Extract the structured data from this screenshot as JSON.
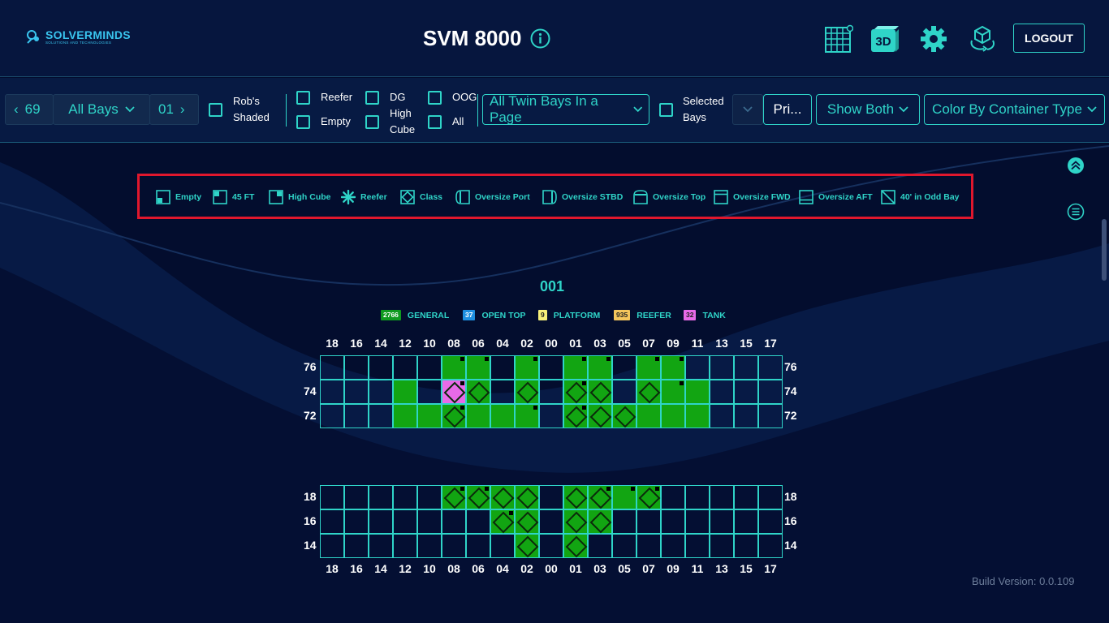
{
  "header": {
    "logo_main": "SOLVERMINDS",
    "logo_sub": "SOLUTIONS AND TECHNOLOGIES",
    "title": "SVM 8000",
    "view_3d_label": "3D",
    "logout_label": "LOGOUT",
    "icons": [
      "info-icon",
      "grid-view-icon",
      "3d-view-icon",
      "gear-icon",
      "cube-rotate-icon"
    ]
  },
  "toolbar": {
    "bay_prev": "69",
    "bay_select": "All Bays",
    "bay_next": "01",
    "robs_label_1": "Rob's",
    "robs_label_2": "Shaded",
    "reefer_label": "Reefer",
    "empty_label": "Empty",
    "dg_label_1": "DG",
    "dg_label_2": "High",
    "dg_label_3": "Cube",
    "oog_label": "OOG",
    "all_label": "All",
    "page_select": "All Twin Bays In a Page",
    "selected_label_1": "Selected",
    "selected_label_2": "Bays",
    "print_label": "Pri...",
    "show_select": "Show Both",
    "color_select": "Color By Container Type"
  },
  "summary": [
    {
      "count": "2766",
      "label": "GENERAL",
      "bg": "#0f9a1f",
      "fg": "#ffffff"
    },
    {
      "count": "37",
      "label": "OPEN TOP",
      "bg": "#1e8fe0",
      "fg": "#ffffff"
    },
    {
      "count": "9",
      "label": "PLATFORM",
      "bg": "#f6ef7a",
      "fg": "#222222"
    },
    {
      "count": "935",
      "label": "REEFER",
      "bg": "#f4c65c",
      "fg": "#222222"
    },
    {
      "count": "32",
      "label": "TANK",
      "bg": "#e86ae8",
      "fg": "#222222"
    }
  ],
  "legend": [
    {
      "icon": "empty-icon",
      "label": "Empty"
    },
    {
      "icon": "45ft-icon",
      "label": "45 FT"
    },
    {
      "icon": "high-cube-icon",
      "label": "High Cube"
    },
    {
      "icon": "reefer-icon",
      "label": "Reefer"
    },
    {
      "icon": "class-icon",
      "label": "Class"
    },
    {
      "icon": "oversize-port-icon",
      "label": "Oversize Port"
    },
    {
      "icon": "oversize-stbd-icon",
      "label": "Oversize STBD"
    },
    {
      "icon": "oversize-top-icon",
      "label": "Oversize Top"
    },
    {
      "icon": "oversize-fwd-icon",
      "label": "Oversize FWD"
    },
    {
      "icon": "oversize-aft-icon",
      "label": "Oversize AFT"
    },
    {
      "icon": "40-in-odd-bay-icon",
      "label": "40' in Odd Bay"
    }
  ],
  "bay": {
    "title": "001",
    "columns": [
      "18",
      "16",
      "14",
      "12",
      "10",
      "08",
      "06",
      "04",
      "02",
      "00",
      "01",
      "03",
      "05",
      "07",
      "09",
      "11",
      "13",
      "15",
      "17"
    ],
    "deck": {
      "rows": [
        {
          "label": "76",
          "cells": "00000GG0G0GG0GG0000",
          "dots": "0000011010110110000",
          "marks": "0000000000000000000"
        },
        {
          "label": "74",
          "cells": "000G0PG0G0GG0GGG000",
          "dots": "0000010000100010000",
          "marks": "0000011010110100000"
        },
        {
          "label": "72",
          "cells": "000GGGGGG0GGGGGG000",
          "dots": "0000010010100000000",
          "marks": "0000010000111000000"
        }
      ]
    },
    "hold": {
      "rows": [
        {
          "label": "18",
          "cells": "00000GGGG0GGGG00000",
          "dots": "0000011000011100000",
          "marks": "0000011110110100000"
        },
        {
          "label": "16",
          "cells": "0000000GG0GG0000000",
          "dots": "0000000100000000000",
          "marks": "0000000110110000000"
        },
        {
          "label": "14",
          "cells": "00000000G0G00000000",
          "dots": "0000000000000000000",
          "marks": "0000000010100000000"
        }
      ]
    }
  },
  "build_version": "Build Version: 0.0.109"
}
